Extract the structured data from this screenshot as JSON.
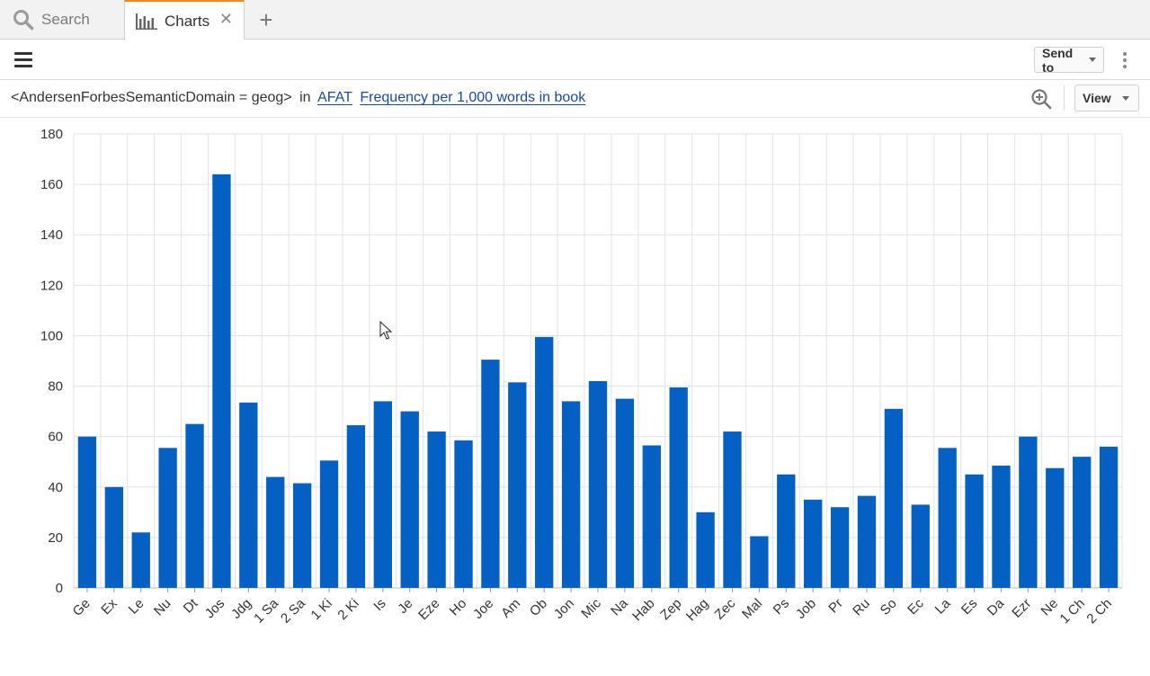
{
  "tabs": {
    "search": {
      "label": "Search",
      "icon": "search-icon"
    },
    "charts": {
      "label": "Charts",
      "icon": "bar-chart-icon",
      "close": "✕"
    },
    "add": "+"
  },
  "toolbar": {
    "send_to": "Send to"
  },
  "query": {
    "expression": "<AndersenForbesSemanticDomain = geog>",
    "in": "in",
    "corpus": "AFAT",
    "measure": "Frequency per 1,000 words in book"
  },
  "view": {
    "label": "View"
  },
  "colors": {
    "bar": "#0560c4",
    "grid": "#e3e3e3",
    "tab_accent": "#f08a24",
    "link": "#1a4a9c"
  },
  "chart_data": {
    "type": "bar",
    "categories": [
      "Ge",
      "Ex",
      "Le",
      "Nu",
      "Dt",
      "Jos",
      "Jdg",
      "1 Sa",
      "2 Sa",
      "1 Ki",
      "2 Ki",
      "Is",
      "Je",
      "Eze",
      "Ho",
      "Joe",
      "Am",
      "Ob",
      "Jon",
      "Mic",
      "Na",
      "Hab",
      "Zep",
      "Hag",
      "Zec",
      "Mal",
      "Ps",
      "Job",
      "Pr",
      "Ru",
      "So",
      "Ec",
      "La",
      "Es",
      "Da",
      "Ezr",
      "Ne",
      "1 Ch",
      "2 Ch"
    ],
    "values": [
      60,
      40,
      22,
      55.5,
      65,
      164,
      73.5,
      44,
      41.5,
      50.5,
      64.5,
      74,
      70,
      62,
      58.5,
      90.5,
      81.5,
      99.5,
      74,
      82,
      75,
      56.5,
      79.5,
      30,
      62,
      20.5,
      45,
      35,
      32,
      36.5,
      71,
      33,
      55.5,
      45,
      48.5,
      60,
      47.5,
      52,
      56
    ],
    "title": "",
    "xlabel": "",
    "ylabel": "",
    "ylim": [
      0,
      180
    ],
    "yticks": [
      0,
      20,
      40,
      60,
      80,
      100,
      120,
      140,
      160,
      180
    ],
    "grid": true,
    "legend": "none"
  }
}
